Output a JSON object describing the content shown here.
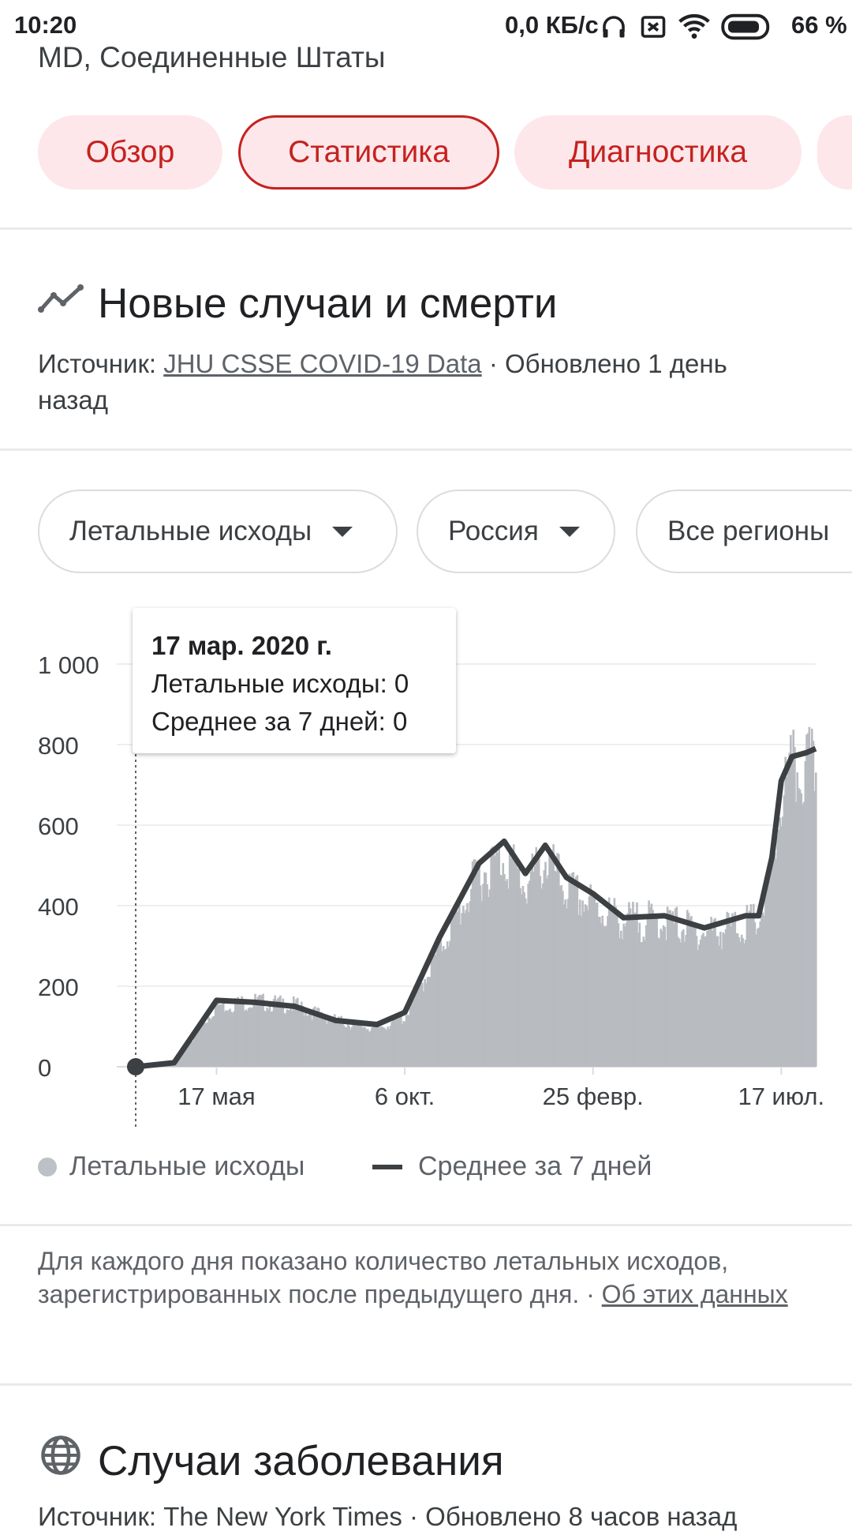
{
  "status_bar": {
    "time": "10:20",
    "network": "0,0 КБ/с",
    "battery": "66 %"
  },
  "location": "MD, Соединенные Штаты",
  "tabs": [
    {
      "label": "Обзор",
      "active": false
    },
    {
      "label": "Статистика",
      "active": true
    },
    {
      "label": "Диагностика",
      "active": false
    }
  ],
  "section1": {
    "title": "Новые случаи и смерти",
    "source_prefix": "Источник: ",
    "source_link": "JHU CSSE COVID-19 Data",
    "source_suffix": " · Обновлено 1 день назад"
  },
  "filters": {
    "metric": "Летальные исходы",
    "country": "Россия",
    "region": "Все регионы"
  },
  "tooltip": {
    "date": "17 мар. 2020 г.",
    "deaths": "Летальные исходы: 0",
    "avg": "Среднее за 7 дней: 0"
  },
  "chart_data": {
    "type": "area",
    "y_ticks": [
      "1 000",
      "800",
      "600",
      "400",
      "200",
      "0"
    ],
    "ylim": [
      0,
      1000
    ],
    "x_ticks": [
      "17 мая",
      "6 окт.",
      "25 февр.",
      "17 июл."
    ],
    "x": [
      "2020-03-17",
      "2020-04-15",
      "2020-05-17",
      "2020-06-15",
      "2020-07-15",
      "2020-08-15",
      "2020-09-15",
      "2020-10-06",
      "2020-11-01",
      "2020-12-01",
      "2020-12-20",
      "2021-01-05",
      "2021-01-20",
      "2021-02-05",
      "2021-02-25",
      "2021-03-20",
      "2021-04-20",
      "2021-05-20",
      "2021-06-20",
      "2021-06-30",
      "2021-07-10",
      "2021-07-17",
      "2021-07-25",
      "2021-08-05",
      "2021-08-12"
    ],
    "series": [
      {
        "name": "Летальные исходы",
        "values": [
          0,
          10,
          160,
          170,
          160,
          120,
          100,
          130,
          310,
          500,
          550,
          470,
          540,
          460,
          420,
          380,
          380,
          350,
          370,
          380,
          500,
          700,
          770,
          775,
          780
        ]
      },
      {
        "name": "Среднее за 7 дней",
        "values": [
          0,
          10,
          165,
          160,
          150,
          115,
          105,
          135,
          320,
          505,
          560,
          480,
          550,
          470,
          430,
          370,
          375,
          345,
          375,
          375,
          520,
          710,
          770,
          780,
          790
        ]
      }
    ],
    "legend": [
      "Летальные исходы",
      "Среднее за 7 дней"
    ],
    "colors": {
      "bars": "#b8bbc0",
      "line": "#3c4043"
    }
  },
  "footnote": {
    "text": "Для каждого дня показано количество летальных исходов, зарегистрированных после предыдущего дня.",
    "sep": " · ",
    "link": "Об этих данных"
  },
  "section2": {
    "title": "Случаи заболевания",
    "source": "Источник: The New York Times · Обновлено 8 часов назад"
  }
}
